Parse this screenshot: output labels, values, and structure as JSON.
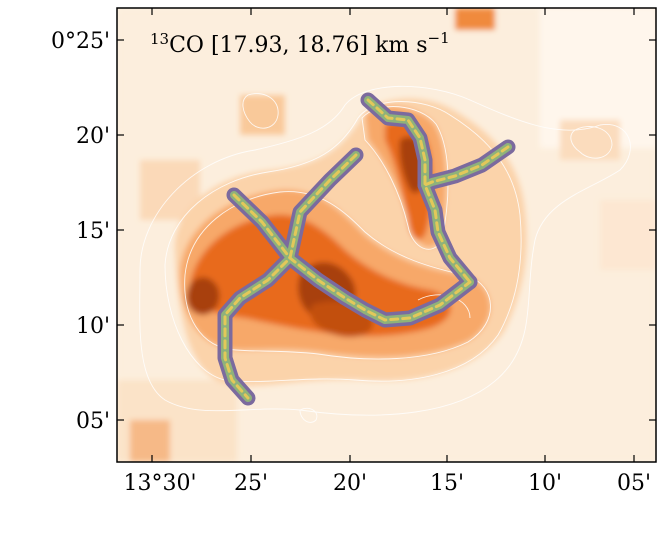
{
  "figure": {
    "title_sup": "13",
    "title_main": "CO [17.93, 18.76] km s",
    "title_exp": "−1"
  },
  "axes": {
    "x_ticks": [
      "13°30'",
      "25'",
      "20'",
      "15'",
      "10'",
      "05'"
    ],
    "y_ticks": [
      "0°25'",
      "20'",
      "15'",
      "10'",
      "05'"
    ]
  },
  "colors": {
    "colormap": "Oranges",
    "contour": "#ffffff",
    "skeleton_outline": "#7b6a9e",
    "skeleton_core": "#e3c85a",
    "skeleton_mid": "#8fb27a"
  }
}
